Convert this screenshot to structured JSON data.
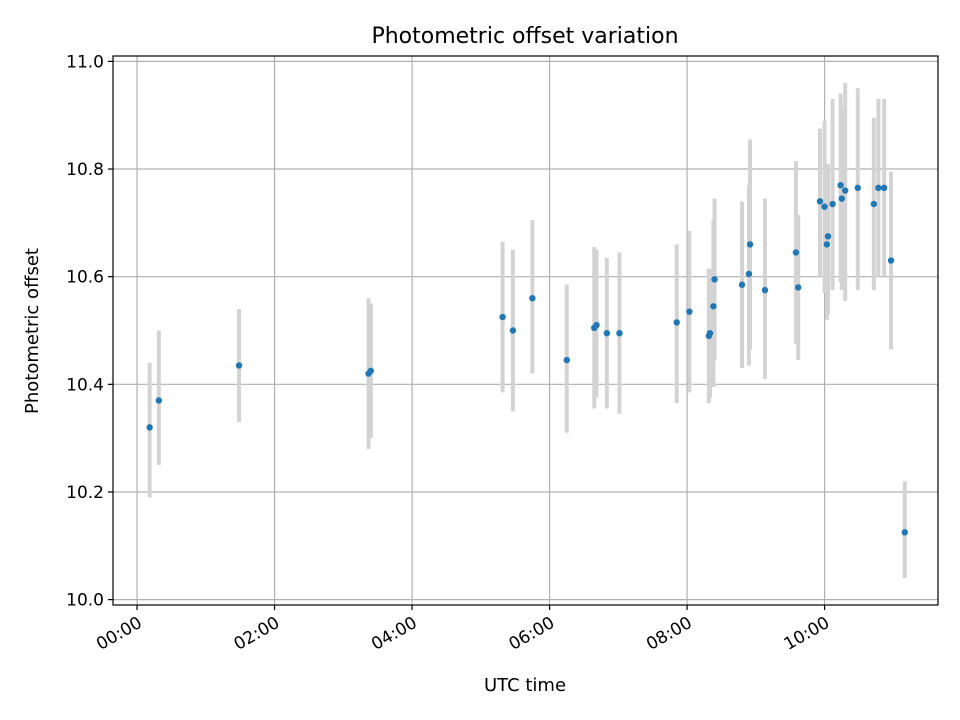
{
  "chart_data": {
    "type": "scatter",
    "title": "Photometric offset variation",
    "xlabel": "UTC time",
    "ylabel": "Photometric offset",
    "xlim": [
      "-00:21",
      "11:39"
    ],
    "ylim": [
      9.99,
      11.01
    ],
    "xticks": [
      "00:00",
      "02:00",
      "04:00",
      "06:00",
      "08:00",
      "10:00"
    ],
    "yticks": [
      "10.0",
      "10.2",
      "10.4",
      "10.6",
      "10.8",
      "11.0"
    ],
    "grid": true,
    "point_color": "#1f77b4",
    "errorbar_color": "#d3d3d3",
    "points": [
      {
        "x": "00:11",
        "y": 10.32,
        "lo": 10.19,
        "hi": 10.44
      },
      {
        "x": "00:19",
        "y": 10.37,
        "lo": 10.25,
        "hi": 10.5
      },
      {
        "x": "01:29",
        "y": 10.435,
        "lo": 10.33,
        "hi": 10.54
      },
      {
        "x": "03:22",
        "y": 10.42,
        "lo": 10.28,
        "hi": 10.56
      },
      {
        "x": "03:24",
        "y": 10.425,
        "lo": 10.3,
        "hi": 10.55
      },
      {
        "x": "05:19",
        "y": 10.525,
        "lo": 10.385,
        "hi": 10.665
      },
      {
        "x": "05:28",
        "y": 10.5,
        "lo": 10.35,
        "hi": 10.65
      },
      {
        "x": "05:45",
        "y": 10.56,
        "lo": 10.42,
        "hi": 10.705
      },
      {
        "x": "06:15",
        "y": 10.445,
        "lo": 10.31,
        "hi": 10.585
      },
      {
        "x": "06:39",
        "y": 10.505,
        "lo": 10.355,
        "hi": 10.655
      },
      {
        "x": "06:41",
        "y": 10.51,
        "lo": 10.375,
        "hi": 10.65
      },
      {
        "x": "06:50",
        "y": 10.495,
        "lo": 10.355,
        "hi": 10.635
      },
      {
        "x": "07:01",
        "y": 10.495,
        "lo": 10.345,
        "hi": 10.645
      },
      {
        "x": "07:51",
        "y": 10.515,
        "lo": 10.365,
        "hi": 10.66
      },
      {
        "x": "08:02",
        "y": 10.535,
        "lo": 10.385,
        "hi": 10.685
      },
      {
        "x": "08:19",
        "y": 10.49,
        "lo": 10.365,
        "hi": 10.615
      },
      {
        "x": "08:20",
        "y": 10.495,
        "lo": 10.375,
        "hi": 10.615
      },
      {
        "x": "08:23",
        "y": 10.545,
        "lo": 10.395,
        "hi": 10.705
      },
      {
        "x": "08:24",
        "y": 10.595,
        "lo": 10.445,
        "hi": 10.745
      },
      {
        "x": "08:48",
        "y": 10.585,
        "lo": 10.43,
        "hi": 10.74
      },
      {
        "x": "08:54",
        "y": 10.605,
        "lo": 10.435,
        "hi": 10.77
      },
      {
        "x": "08:55",
        "y": 10.66,
        "lo": 10.465,
        "hi": 10.855
      },
      {
        "x": "09:08",
        "y": 10.575,
        "lo": 10.41,
        "hi": 10.745
      },
      {
        "x": "09:35",
        "y": 10.645,
        "lo": 10.475,
        "hi": 10.815
      },
      {
        "x": "09:37",
        "y": 10.58,
        "lo": 10.445,
        "hi": 10.715
      },
      {
        "x": "09:56",
        "y": 10.74,
        "lo": 10.6,
        "hi": 10.875
      },
      {
        "x": "10:00",
        "y": 10.73,
        "lo": 10.57,
        "hi": 10.89
      },
      {
        "x": "10:02",
        "y": 10.66,
        "lo": 10.52,
        "hi": 10.8
      },
      {
        "x": "10:03",
        "y": 10.675,
        "lo": 10.53,
        "hi": 10.81
      },
      {
        "x": "10:07",
        "y": 10.735,
        "lo": 10.575,
        "hi": 10.93
      },
      {
        "x": "10:14",
        "y": 10.77,
        "lo": 10.59,
        "hi": 10.94
      },
      {
        "x": "10:15",
        "y": 10.745,
        "lo": 10.575,
        "hi": 10.915
      },
      {
        "x": "10:18",
        "y": 10.76,
        "lo": 10.555,
        "hi": 10.96
      },
      {
        "x": "10:29",
        "y": 10.765,
        "lo": 10.575,
        "hi": 10.95
      },
      {
        "x": "10:43",
        "y": 10.735,
        "lo": 10.575,
        "hi": 10.895
      },
      {
        "x": "10:47",
        "y": 10.765,
        "lo": 10.6,
        "hi": 10.93
      },
      {
        "x": "10:52",
        "y": 10.765,
        "lo": 10.6,
        "hi": 10.93
      },
      {
        "x": "10:58",
        "y": 10.63,
        "lo": 10.465,
        "hi": 10.795
      },
      {
        "x": "11:10",
        "y": 10.125,
        "lo": 10.04,
        "hi": 10.22
      }
    ]
  }
}
